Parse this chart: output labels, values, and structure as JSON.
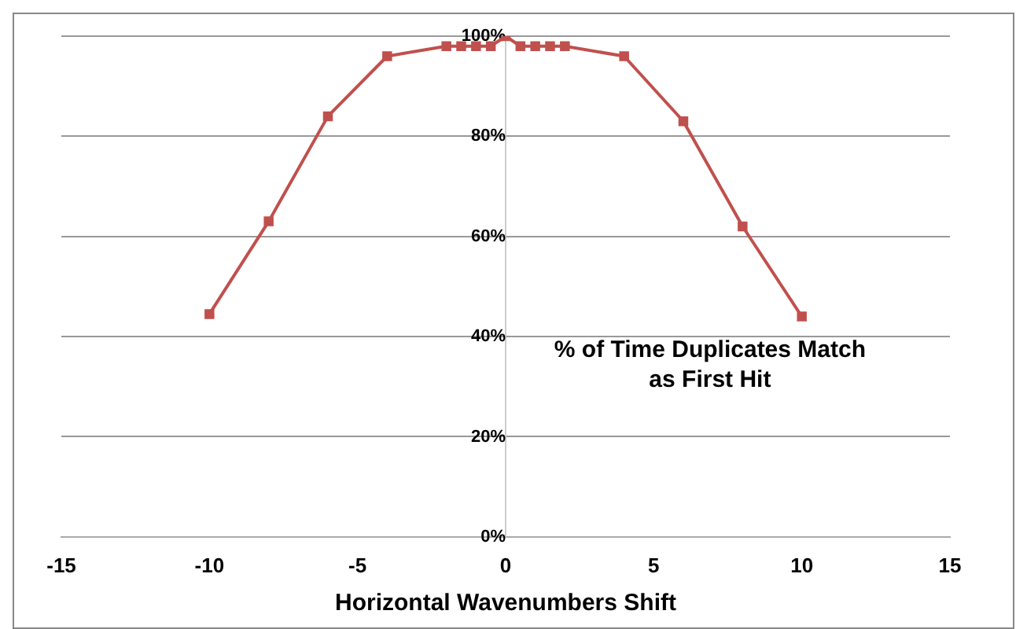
{
  "chart_data": {
    "type": "line",
    "title": "% of Time Duplicates Match as First Hit",
    "xlabel": "Horizontal Wavenumbers Shift",
    "x": [
      -10,
      -8,
      -6,
      -4,
      -2,
      -1.5,
      -1,
      -0.5,
      0,
      0.5,
      1,
      1.5,
      2,
      4,
      6,
      8,
      10
    ],
    "series": [
      {
        "color": "#c0504d",
        "values": [
          44.5,
          63,
          84,
          96,
          98,
          98,
          98,
          98,
          100,
          98,
          98,
          98,
          98,
          96,
          83,
          62,
          44
        ]
      }
    ],
    "xlim": [
      -15,
      15
    ],
    "xticks": [
      -15,
      -10,
      -5,
      0,
      5,
      10,
      15
    ],
    "ylim": [
      0,
      100
    ],
    "yticks": [
      {
        "value": 0,
        "label": "0%"
      },
      {
        "value": 20,
        "label": "20%"
      },
      {
        "value": 40,
        "label": "40%"
      },
      {
        "value": 60,
        "label": "60%"
      },
      {
        "value": 80,
        "label": "80%"
      },
      {
        "value": 100,
        "label": "100%"
      }
    ],
    "grid": "y",
    "marker": "square",
    "line_style": "solid",
    "legend": false
  }
}
